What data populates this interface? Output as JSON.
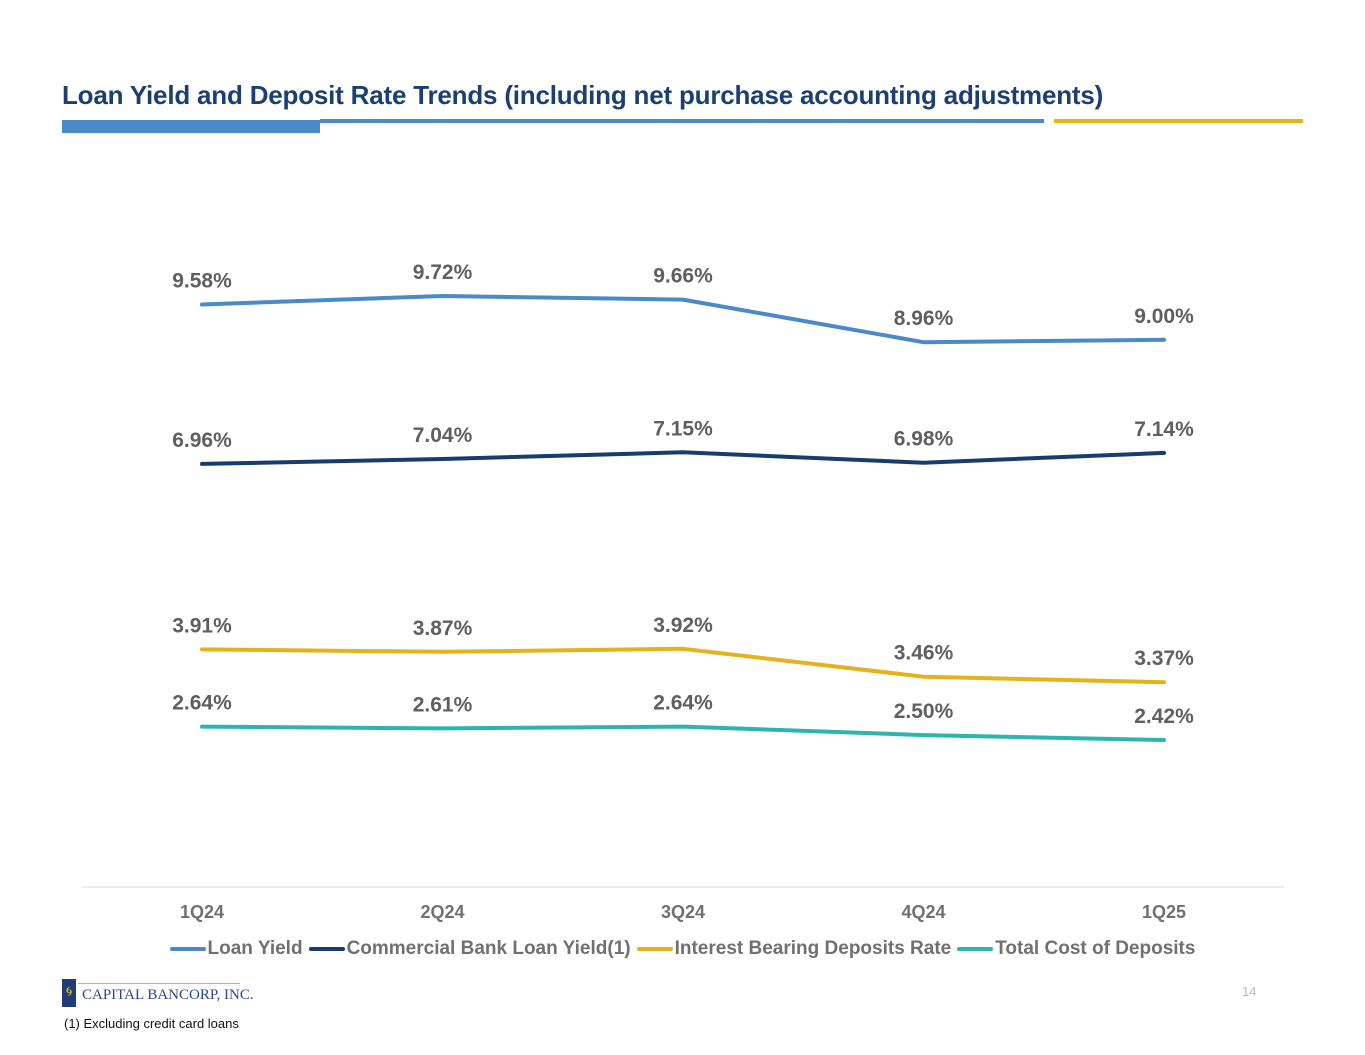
{
  "page": {
    "title": "Loan Yield and Deposit Rate Trends (including net purchase accounting adjustments)",
    "footnote": "(1) Excluding credit card loans",
    "page_number": "14",
    "logo": {
      "text": "CAPITAL BANCORP, INC.",
      "icon": "swirl-icon"
    },
    "colors": {
      "title": "#1b3f73",
      "accent_blue": "#4a8acb",
      "accent_gold": "#e3b21d",
      "label_gray": "#5f5f5f"
    }
  },
  "chart_data": {
    "type": "line",
    "title": "Loan Yield and Deposit Rate Trends (including net purchase accounting adjustments)",
    "xlabel": "",
    "ylabel": "",
    "categories": [
      "1Q24",
      "2Q24",
      "3Q24",
      "4Q24",
      "1Q25"
    ],
    "grid": false,
    "legend_position": "bottom",
    "ylim": [
      0,
      12
    ],
    "value_suffix": "%",
    "series": [
      {
        "name": "Loan Yield",
        "color": "#4a8acb",
        "values": [
          9.58,
          9.72,
          9.66,
          8.96,
          9.0
        ],
        "labels": [
          "9.58%",
          "9.72%",
          "9.66%",
          "8.96%",
          "9.00%"
        ]
      },
      {
        "name": "Commercial Bank Loan Yield(1)",
        "color": "#163d6b",
        "values": [
          6.96,
          7.04,
          7.15,
          6.98,
          7.14
        ],
        "labels": [
          "6.96%",
          "7.04%",
          "7.15%",
          "6.98%",
          "7.14%"
        ]
      },
      {
        "name": "Interest Bearing Deposits Rate",
        "color": "#e3b21d",
        "values": [
          3.91,
          3.87,
          3.92,
          3.46,
          3.37
        ],
        "labels": [
          "3.91%",
          "3.87%",
          "3.92%",
          "3.46%",
          "3.37%"
        ]
      },
      {
        "name": "Total Cost of Deposits",
        "color": "#2bb5ae",
        "values": [
          2.64,
          2.61,
          2.64,
          2.5,
          2.42
        ],
        "labels": [
          "2.64%",
          "2.61%",
          "2.64%",
          "2.50%",
          "2.42%"
        ]
      }
    ]
  }
}
